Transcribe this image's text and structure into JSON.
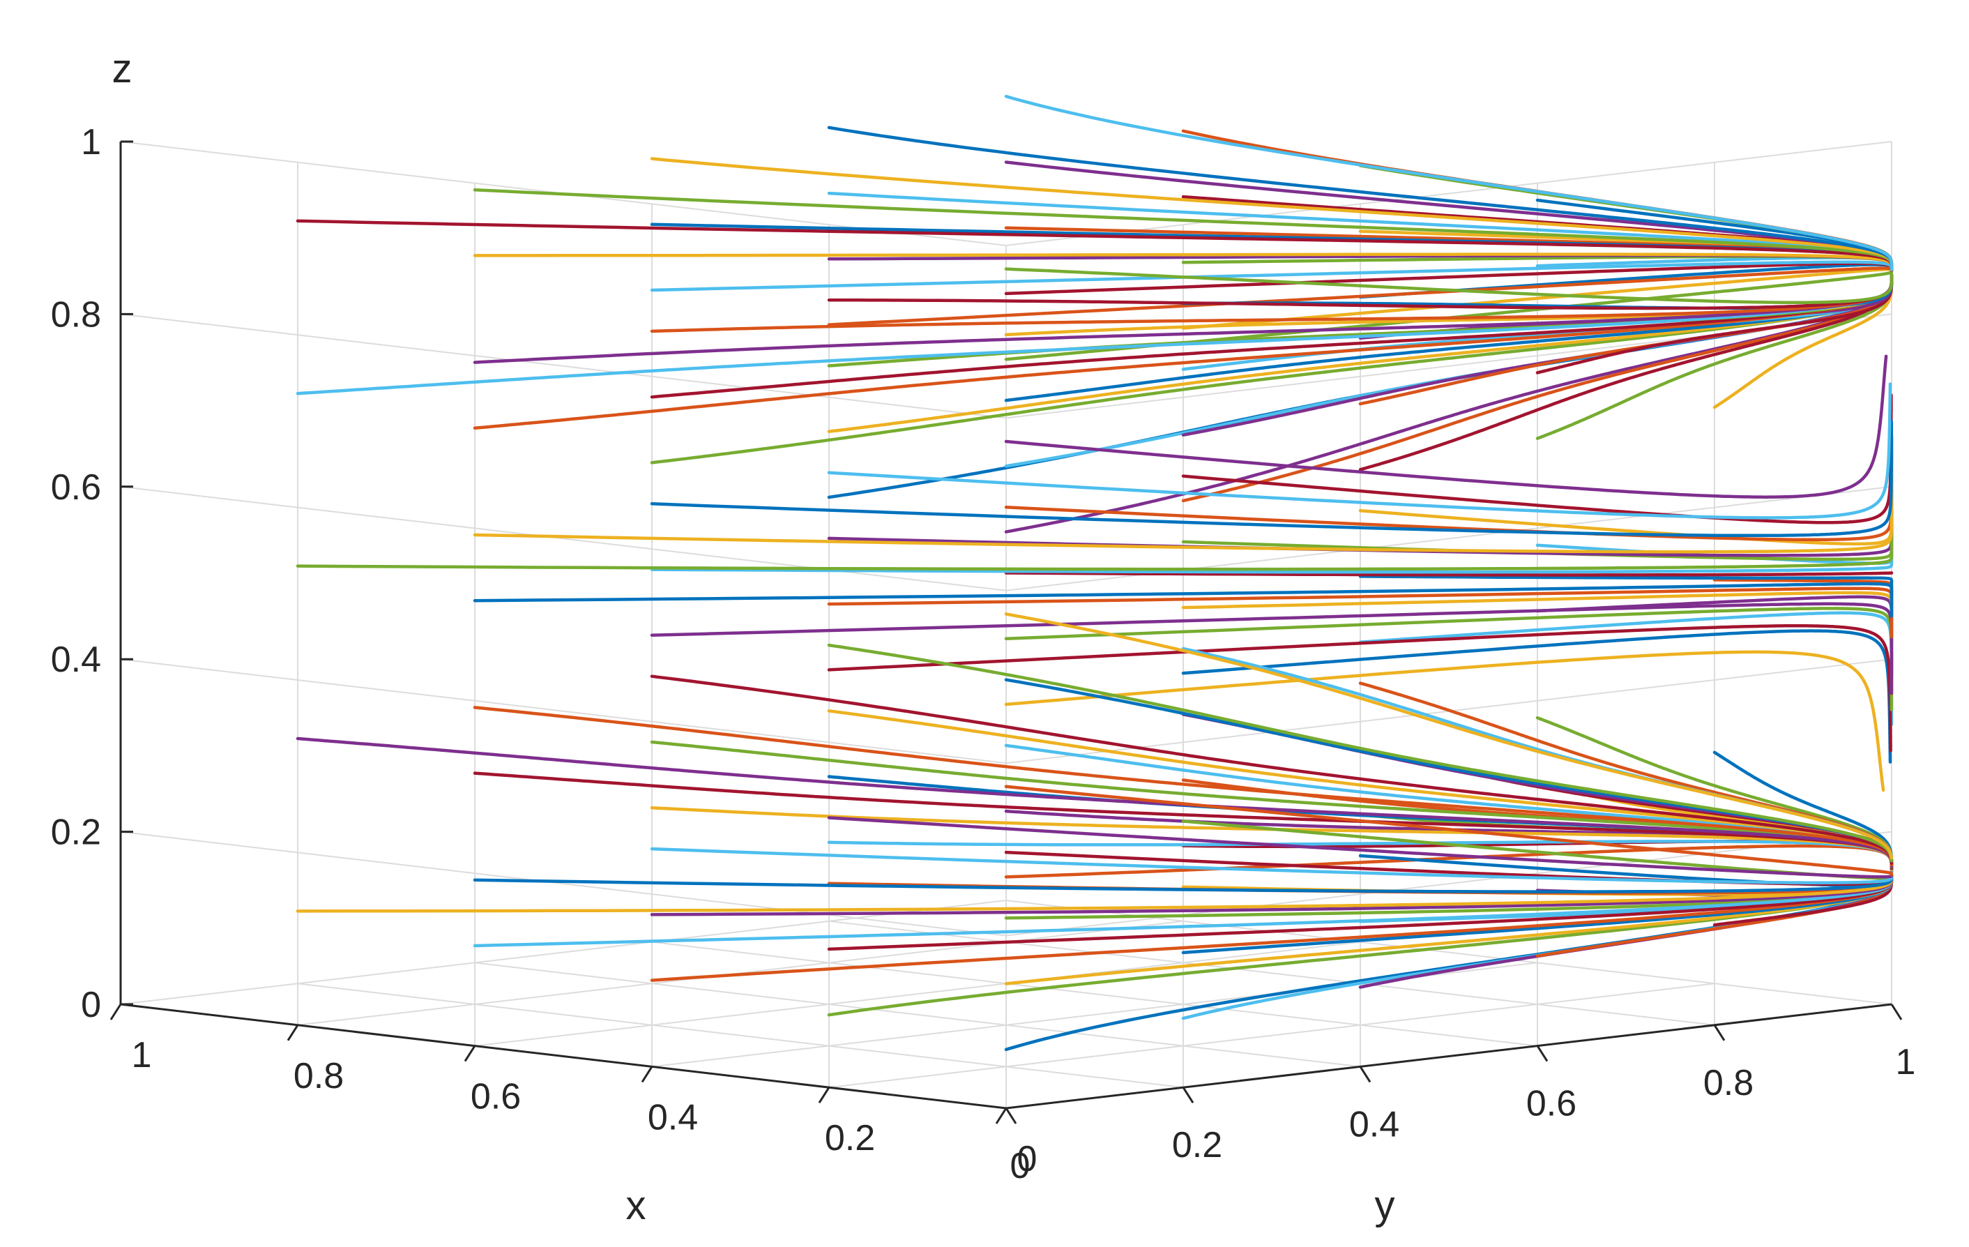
{
  "chart_data": {
    "type": "line",
    "subtype": "3d-trajectories",
    "title": "",
    "xlabel": "x",
    "ylabel": "y",
    "zlabel": "z",
    "xlim": [
      0,
      1
    ],
    "ylim": [
      0,
      1
    ],
    "zlim": [
      0,
      1
    ],
    "xticks": [
      "0",
      "0.2",
      "0.4",
      "0.6",
      "0.8",
      "1"
    ],
    "yticks": [
      "0",
      "0.2",
      "0.4",
      "0.6",
      "0.8",
      "1"
    ],
    "zticks": [
      "0",
      "0.2",
      "0.4",
      "0.6",
      "0.8",
      "1"
    ],
    "grid": true,
    "legend": "none",
    "colors": [
      "#0072BD",
      "#D95319",
      "#EDB120",
      "#7E2F8E",
      "#77AC30",
      "#4DBEEE",
      "#A2142F"
    ],
    "initial_grid": {
      "x0": [
        0.1,
        0.3,
        0.5,
        0.7,
        0.9
      ],
      "y0": [
        0.1,
        0.3,
        0.5,
        0.7,
        0.9
      ],
      "z0": [
        0.1,
        0.3,
        0.5,
        0.7,
        0.9
      ]
    },
    "attractor": {
      "x": 0,
      "y": 1
    }
  }
}
